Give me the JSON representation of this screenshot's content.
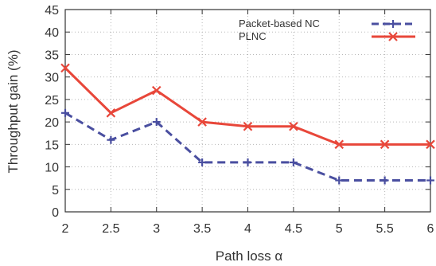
{
  "chart_data": {
    "type": "line",
    "title": "",
    "xlabel": "Path loss α",
    "ylabel": "Throughput gain (%)",
    "x": [
      2,
      2.5,
      3,
      3.5,
      4,
      4.5,
      5,
      5.5,
      6
    ],
    "x_tick_labels": [
      "2",
      "2.5",
      "3",
      "3.5",
      "4",
      "4.5",
      "5",
      "5.5",
      "6"
    ],
    "y_tick_labels": [
      "0",
      "5",
      "10",
      "15",
      "20",
      "25",
      "30",
      "35",
      "40",
      "45"
    ],
    "xlim": [
      2,
      6
    ],
    "ylim": [
      0,
      45
    ],
    "grid": true,
    "legend_position": "top-right",
    "series": [
      {
        "name": "Packet-based NC",
        "values": [
          22,
          16,
          20,
          11,
          11,
          11,
          7,
          7,
          7
        ],
        "color": "#4a4fa0",
        "line_style": "dashed",
        "marker": "plus"
      },
      {
        "name": "PLNC",
        "values": [
          32,
          22,
          27,
          20,
          19,
          19,
          15,
          15,
          15
        ],
        "color": "#e8473a",
        "line_style": "solid",
        "marker": "cross"
      }
    ]
  }
}
